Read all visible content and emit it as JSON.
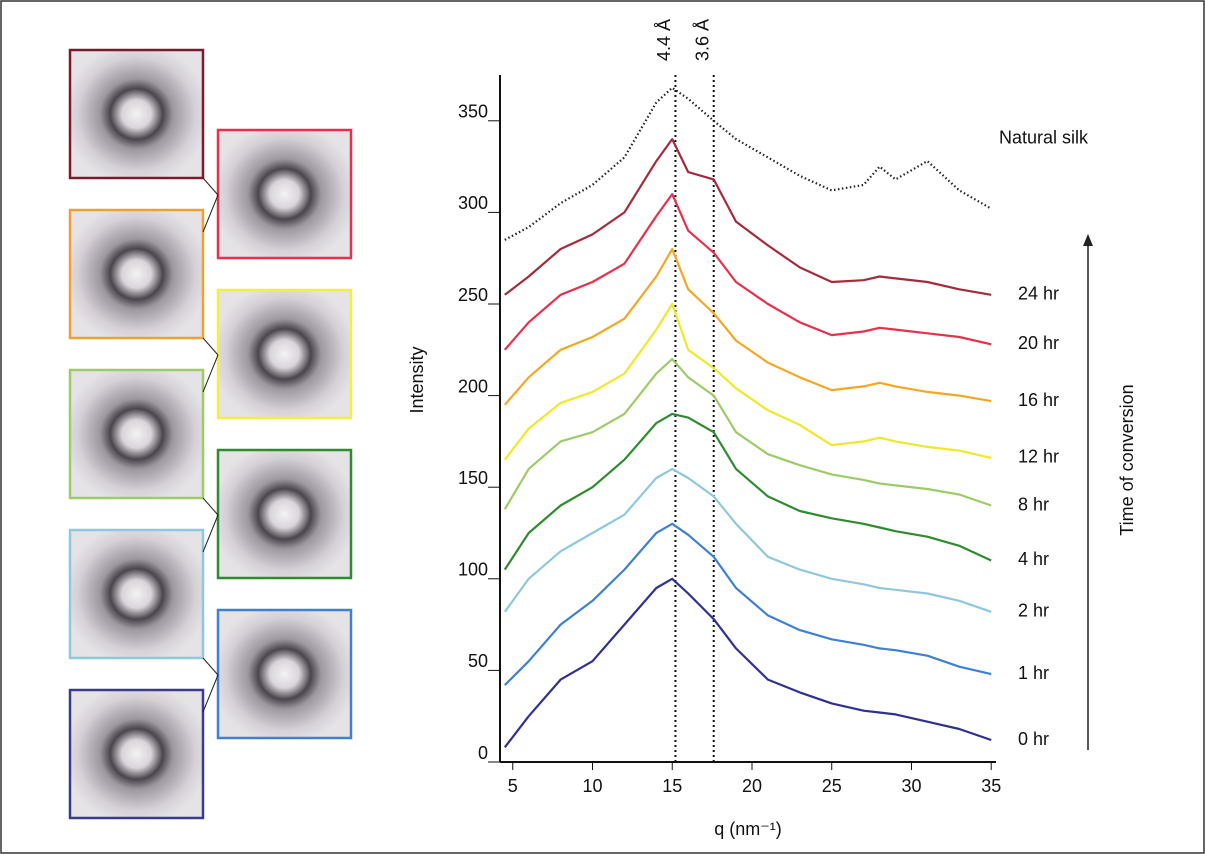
{
  "chart_data": {
    "type": "line",
    "x_label": "q (nm⁻¹)",
    "y_label": "Intensity",
    "side_label": "Time of conversion",
    "x": [
      4.5,
      6,
      8,
      10,
      12,
      14,
      15,
      16,
      17.6,
      19,
      21,
      23,
      25,
      27,
      28,
      29,
      31,
      33,
      35
    ],
    "xlim": [
      4.2,
      35.3
    ],
    "xticks": [
      5,
      10,
      15,
      20,
      25,
      30,
      35
    ],
    "ylim": [
      0,
      375
    ],
    "yticks": [
      0,
      50,
      100,
      150,
      200,
      250,
      300,
      350
    ],
    "annotations": [
      {
        "x": 15.2,
        "label": "4.4 Å"
      },
      {
        "x": 17.6,
        "label": "3.6 Å"
      }
    ],
    "series": [
      {
        "name": "0 hr",
        "color": "#2e3192",
        "values": [
          8,
          25,
          45,
          55,
          75,
          95,
          100,
          92,
          78,
          62,
          45,
          38,
          32,
          28,
          27,
          26,
          22,
          18,
          12
        ]
      },
      {
        "name": "1 hr",
        "color": "#3f7fd4",
        "values": [
          42,
          55,
          75,
          88,
          105,
          125,
          130,
          124,
          112,
          95,
          80,
          72,
          67,
          64,
          62,
          61,
          58,
          52,
          48
        ]
      },
      {
        "name": "2 hr",
        "color": "#8fc8dd",
        "values": [
          82,
          100,
          115,
          125,
          135,
          155,
          160,
          155,
          145,
          130,
          112,
          105,
          100,
          97,
          95,
          94,
          92,
          88,
          82
        ]
      },
      {
        "name": "4 hr",
        "color": "#2e8b2e",
        "values": [
          105,
          125,
          140,
          150,
          165,
          185,
          190,
          188,
          180,
          160,
          145,
          137,
          133,
          130,
          128,
          126,
          123,
          118,
          110
        ]
      },
      {
        "name": "8 hr",
        "color": "#9ccc65",
        "values": [
          138,
          160,
          175,
          180,
          190,
          212,
          220,
          210,
          200,
          180,
          168,
          162,
          157,
          154,
          152,
          151,
          149,
          146,
          140
        ]
      },
      {
        "name": "12 hr",
        "color": "#f0e82a",
        "values": [
          165,
          182,
          196,
          202,
          212,
          236,
          250,
          225,
          215,
          204,
          192,
          184,
          173,
          175,
          177,
          175,
          172,
          170,
          166
        ]
      },
      {
        "name": "16 hr",
        "color": "#f5a623",
        "values": [
          195,
          210,
          225,
          232,
          242,
          265,
          280,
          258,
          245,
          230,
          218,
          210,
          203,
          205,
          207,
          205,
          202,
          200,
          197
        ]
      },
      {
        "name": "20 hr",
        "color": "#e8304a",
        "values": [
          225,
          240,
          255,
          262,
          272,
          298,
          310,
          290,
          278,
          262,
          250,
          240,
          233,
          235,
          237,
          236,
          234,
          232,
          228
        ]
      },
      {
        "name": "24 hr",
        "color": "#a52a3a",
        "values": [
          255,
          265,
          280,
          288,
          300,
          328,
          340,
          322,
          318,
          295,
          282,
          270,
          262,
          263,
          265,
          264,
          262,
          258,
          255
        ]
      },
      {
        "name": "Natural silk",
        "color": "#222222",
        "dotted": true,
        "values": [
          285,
          292,
          305,
          315,
          330,
          360,
          368,
          362,
          350,
          340,
          330,
          320,
          312,
          315,
          325,
          318,
          328,
          312,
          302
        ]
      }
    ]
  }
}
